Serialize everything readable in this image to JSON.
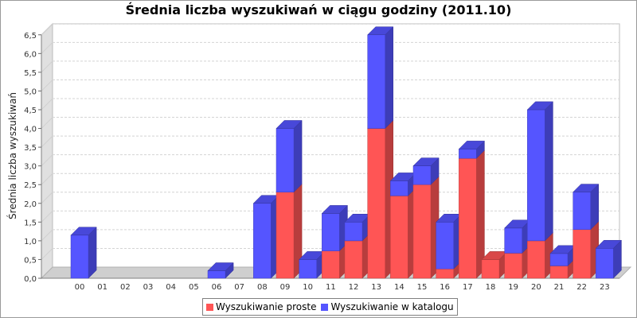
{
  "chart_data": {
    "type": "bar",
    "stacked": true,
    "title": "Średnia liczba wyszukiwań w ciągu godziny (2011.10)",
    "xlabel": "",
    "ylabel": "Średnia liczba wyszukiwań",
    "ylim": [
      0,
      6.5
    ],
    "yticks": [
      "0,0",
      "0,5",
      "1,0",
      "1,5",
      "2,0",
      "2,5",
      "3,0",
      "3,5",
      "4,0",
      "4,5",
      "5,0",
      "5,5",
      "6,0",
      "6,5"
    ],
    "categories": [
      "00",
      "01",
      "02",
      "03",
      "04",
      "05",
      "06",
      "07",
      "08",
      "09",
      "10",
      "11",
      "12",
      "13",
      "14",
      "15",
      "16",
      "17",
      "18",
      "19",
      "20",
      "21",
      "22",
      "23"
    ],
    "series": [
      {
        "name": "Wyszukiwanie proste",
        "color": "#ff5555",
        "values": [
          0,
          0,
          0,
          0,
          0,
          0,
          0,
          0,
          0,
          2.3,
          0,
          0.73,
          1,
          4,
          2.2,
          2.5,
          0.25,
          3.2,
          0.5,
          0.67,
          1,
          0.33,
          1.3,
          0
        ]
      },
      {
        "name": "Wyszukiwanie w katalogu",
        "color": "#5555ff",
        "values": [
          1.15,
          0,
          0,
          0,
          0,
          0,
          0.2,
          0,
          2,
          1.7,
          0.5,
          1,
          0.5,
          2.5,
          0.4,
          0.5,
          1.25,
          0.25,
          0,
          0.67,
          3.5,
          0.33,
          1,
          0.8
        ]
      }
    ],
    "grid": true,
    "legend_position": "bottom"
  }
}
